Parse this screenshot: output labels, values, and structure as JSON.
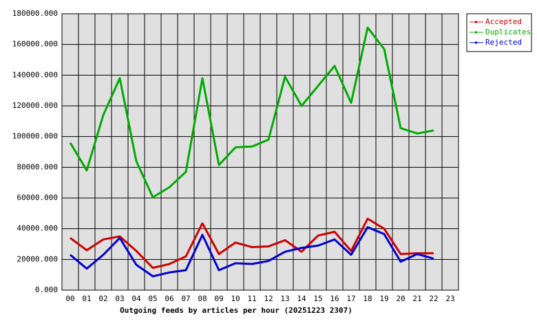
{
  "chart_data": {
    "type": "line",
    "xlabel": "Outgoing feeds by articles per hour (20251223 2307)",
    "categories": [
      "00",
      "01",
      "02",
      "03",
      "04",
      "05",
      "06",
      "07",
      "08",
      "09",
      "10",
      "11",
      "12",
      "13",
      "14",
      "15",
      "16",
      "17",
      "18",
      "19",
      "20",
      "21",
      "22",
      "23"
    ],
    "series": [
      {
        "name": "Accepted",
        "color": "#cc0000",
        "values": [
          34000,
          26000,
          33000,
          35000,
          25500,
          14500,
          17000,
          22000,
          43500,
          23500,
          31000,
          28000,
          28500,
          32500,
          25000,
          35500,
          38000,
          25500,
          46500,
          40000,
          23500,
          24000,
          24000,
          null
        ]
      },
      {
        "name": "Duplicates",
        "color": "#00aa00",
        "values": [
          96000,
          78000,
          114000,
          138000,
          84000,
          60500,
          67000,
          77000,
          138000,
          81500,
          93000,
          93500,
          98000,
          139000,
          120000,
          133000,
          146000,
          122000,
          171000,
          157000,
          105500,
          102000,
          104000,
          null
        ]
      },
      {
        "name": "Rejected",
        "color": "#0000cc",
        "values": [
          23000,
          14000,
          23000,
          34000,
          16500,
          9000,
          11500,
          13000,
          36000,
          13000,
          17500,
          17000,
          19000,
          25000,
          27500,
          29000,
          33000,
          23000,
          41000,
          36500,
          18500,
          23500,
          20500,
          null
        ]
      }
    ],
    "ylim": [
      0,
      180000
    ],
    "yticks": [
      {
        "value": 0,
        "label": "0.000"
      },
      {
        "value": 20000,
        "label": "20000.000"
      },
      {
        "value": 40000,
        "label": "40000.000"
      },
      {
        "value": 60000,
        "label": "60000.000"
      },
      {
        "value": 80000,
        "label": "80000.000"
      },
      {
        "value": 100000,
        "label": "100000.000"
      },
      {
        "value": 120000,
        "label": "120000.000"
      },
      {
        "value": 140000,
        "label": "140000.000"
      },
      {
        "value": 160000,
        "label": "160000.000"
      },
      {
        "value": 180000,
        "label": "180000.000"
      }
    ],
    "grid": true,
    "legend": "top-right"
  }
}
